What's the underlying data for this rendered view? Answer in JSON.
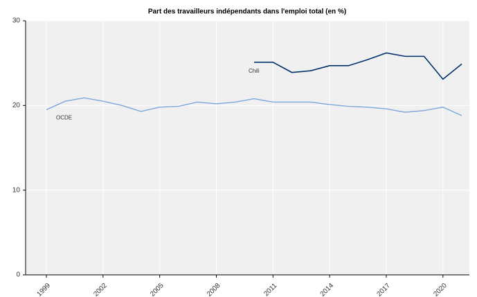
{
  "chart_data": {
    "type": "line",
    "title": "Part des travailleurs indépendants dans l'emploi total (en %)",
    "x": [
      1999,
      2000,
      2001,
      2002,
      2003,
      2004,
      2005,
      2006,
      2007,
      2008,
      2009,
      2010,
      2011,
      2012,
      2013,
      2014,
      2015,
      2016,
      2017,
      2018,
      2019,
      2020,
      2021
    ],
    "series": [
      {
        "name": "Chili",
        "color": "#002f6c",
        "values": [
          null,
          null,
          null,
          null,
          null,
          null,
          null,
          null,
          null,
          null,
          null,
          25.1,
          25.1,
          23.9,
          24.1,
          24.7,
          24.7,
          25.4,
          26.2,
          25.8,
          25.8,
          23.1,
          24.9
        ]
      },
      {
        "name": "OCDE",
        "color": "#7ba7dc",
        "values": [
          19.5,
          20.5,
          20.9,
          20.5,
          20.0,
          19.3,
          19.8,
          19.9,
          20.4,
          20.2,
          20.4,
          20.8,
          20.4,
          20.4,
          20.4,
          20.1,
          19.9,
          19.8,
          19.6,
          19.2,
          19.4,
          19.8,
          18.8
        ]
      }
    ],
    "xlim": [
      1997.9,
      2021.4
    ],
    "xticks": [
      1999,
      2002,
      2005,
      2008,
      2011,
      2014,
      2017,
      2020
    ],
    "ylim": [
      0,
      30
    ],
    "yticks": [
      0,
      10,
      20,
      30
    ],
    "grid": true
  }
}
